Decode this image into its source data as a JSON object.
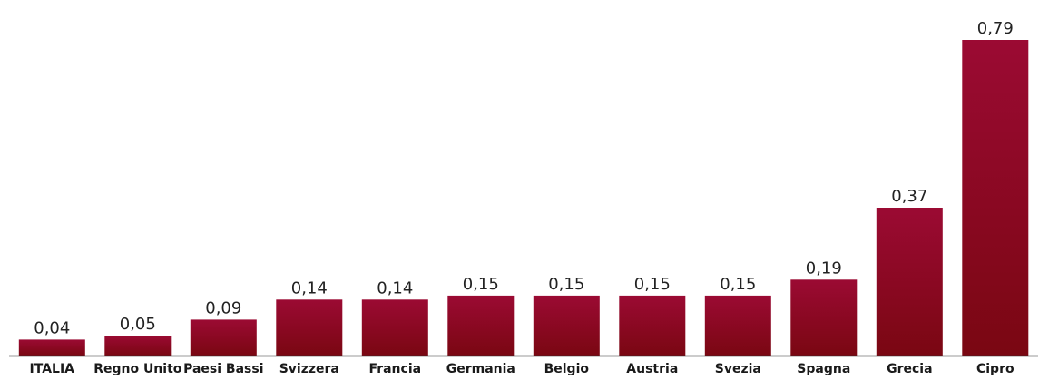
{
  "chart_data": {
    "type": "bar",
    "categories": [
      "ITALIA",
      "Regno Unito",
      "Paesi Bassi",
      "Svizzera",
      "Francia",
      "Germania",
      "Belgio",
      "Austria",
      "Svezia",
      "Spagna",
      "Grecia",
      "Cipro"
    ],
    "values": [
      0.04,
      0.05,
      0.09,
      0.14,
      0.14,
      0.15,
      0.15,
      0.15,
      0.15,
      0.19,
      0.37,
      0.79
    ],
    "value_labels": [
      "0,04",
      "0,05",
      "0,09",
      "0,14",
      "0,14",
      "0,15",
      "0,15",
      "0,15",
      "0,15",
      "0,19",
      "0,37",
      "0,79"
    ],
    "ylim": [
      0,
      0.79
    ],
    "grid": false,
    "bar_color_top": "#9b0a33",
    "bar_color_bottom": "#7a0712",
    "axis_color": "#333333"
  }
}
